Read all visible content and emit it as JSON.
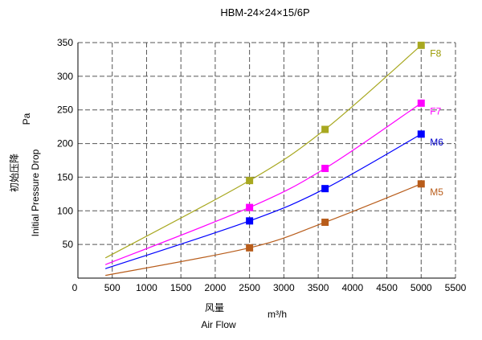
{
  "chart_data": {
    "type": "line",
    "title": "HBM-24×24×15/6P",
    "ylabel_unit": "Pa",
    "ylabel_cn": "初始压降",
    "ylabel_en": "Initial Pressure Drop",
    "xlabel_cn": "风量",
    "xlabel_en": "Air Flow",
    "xunit": "m³/h",
    "xlim": [
      0,
      5500
    ],
    "ylim": [
      0,
      350
    ],
    "xticks": [
      500,
      1000,
      1500,
      2000,
      2500,
      3000,
      3500,
      4000,
      4500,
      5000,
      5500
    ],
    "yticks": [
      50,
      100,
      150,
      200,
      250,
      300,
      350
    ],
    "origin_label": "0",
    "grid": true,
    "series": [
      {
        "name": "F8",
        "color": "#A8A820",
        "label_color": "#999900",
        "curve": [
          [
            400,
            30
          ],
          [
            2500,
            145
          ],
          [
            3600,
            221
          ],
          [
            5000,
            346
          ]
        ],
        "markers": [
          [
            2500,
            145
          ],
          [
            3600,
            221
          ],
          [
            5000,
            346
          ]
        ]
      },
      {
        "name": "F7",
        "color": "#FF00FF",
        "label_color": "#FF00FF",
        "curve": [
          [
            400,
            20
          ],
          [
            2500,
            105
          ],
          [
            3600,
            163
          ],
          [
            5000,
            260
          ]
        ],
        "markers": [
          [
            2500,
            105
          ],
          [
            3600,
            163
          ],
          [
            5000,
            260
          ]
        ]
      },
      {
        "name": "M6",
        "color": "#0000FF",
        "label_color": "#0000CC",
        "curve": [
          [
            400,
            14
          ],
          [
            2500,
            85
          ],
          [
            3600,
            133
          ],
          [
            5000,
            214
          ]
        ],
        "markers": [
          [
            2500,
            85
          ],
          [
            3600,
            133
          ],
          [
            5000,
            214
          ]
        ]
      },
      {
        "name": "M5",
        "color": "#B85C1A",
        "label_color": "#B85C1A",
        "curve": [
          [
            400,
            4
          ],
          [
            2500,
            45
          ],
          [
            3600,
            83
          ],
          [
            5000,
            140
          ]
        ],
        "markers": [
          [
            2500,
            45
          ],
          [
            3600,
            83
          ],
          [
            5000,
            140
          ]
        ]
      }
    ]
  }
}
